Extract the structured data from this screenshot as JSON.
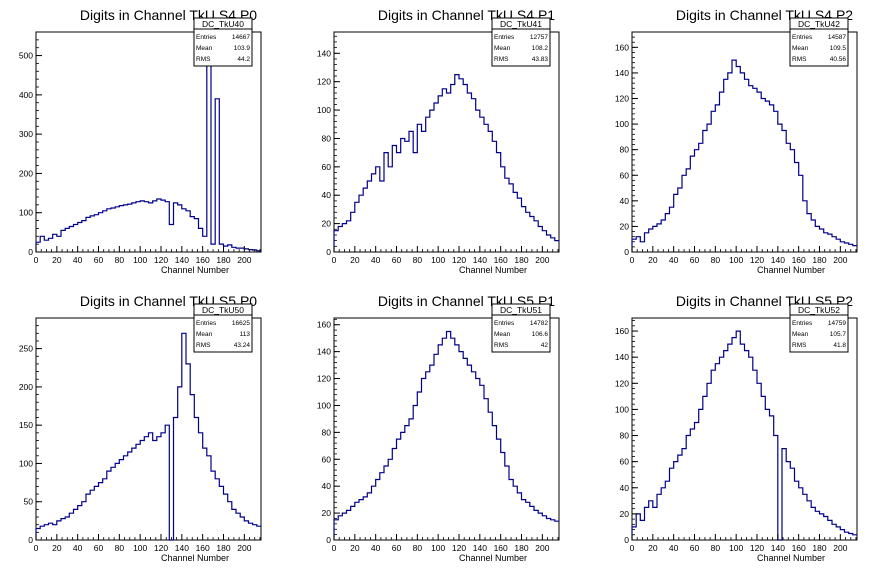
{
  "chart_data": [
    {
      "type": "histogram",
      "title": "Digits in Channel TkU S4 P0",
      "xlabel": "Channel Number",
      "ylabel": "",
      "xlim": [
        0,
        216
      ],
      "ylim": [
        0,
        560
      ],
      "xticks": [
        0,
        20,
        40,
        60,
        80,
        100,
        120,
        140,
        160,
        180,
        200
      ],
      "yticks": [
        0,
        100,
        200,
        300,
        400,
        500
      ],
      "stats": {
        "name": "DC_TkU40",
        "entries_label": "Entries",
        "entries": "14667",
        "mean_label": "Mean",
        "mean": "103.9",
        "rms_label": "RMS",
        "rms": "44.2"
      },
      "x": [
        0,
        4,
        8,
        12,
        16,
        20,
        24,
        28,
        32,
        36,
        40,
        44,
        48,
        52,
        56,
        60,
        64,
        68,
        72,
        76,
        80,
        84,
        88,
        92,
        96,
        100,
        104,
        108,
        112,
        116,
        120,
        124,
        128,
        132,
        136,
        140,
        144,
        148,
        152,
        156,
        160,
        164,
        168,
        172,
        176,
        180,
        184,
        188,
        192,
        196,
        200,
        204,
        208,
        212
      ],
      "values": [
        25,
        40,
        30,
        35,
        45,
        40,
        55,
        60,
        65,
        70,
        75,
        80,
        88,
        92,
        95,
        100,
        105,
        110,
        112,
        115,
        118,
        120,
        122,
        125,
        128,
        130,
        128,
        125,
        130,
        135,
        132,
        128,
        70,
        125,
        120,
        110,
        105,
        90,
        85,
        60,
        40,
        530,
        20,
        390,
        20,
        15,
        18,
        12,
        10,
        10,
        8,
        6,
        5,
        3
      ]
    },
    {
      "type": "histogram",
      "title": "Digits in Channel TkU S4 P1",
      "xlabel": "Channel Number",
      "ylabel": "",
      "xlim": [
        0,
        216
      ],
      "ylim": [
        0,
        155
      ],
      "xticks": [
        0,
        20,
        40,
        60,
        80,
        100,
        120,
        140,
        160,
        180,
        200
      ],
      "yticks": [
        0,
        20,
        40,
        60,
        80,
        100,
        120,
        140
      ],
      "stats": {
        "name": "DC_TkU41",
        "entries_label": "Entries",
        "entries": "12757",
        "mean_label": "Mean",
        "mean": "108.2",
        "rms_label": "RMS",
        "rms": "43.83"
      },
      "x": [
        0,
        4,
        8,
        12,
        16,
        20,
        24,
        28,
        32,
        36,
        40,
        44,
        48,
        52,
        56,
        60,
        64,
        68,
        72,
        76,
        80,
        84,
        88,
        92,
        96,
        100,
        104,
        108,
        112,
        116,
        120,
        124,
        128,
        132,
        136,
        140,
        144,
        148,
        152,
        156,
        160,
        164,
        168,
        172,
        176,
        180,
        184,
        188,
        192,
        196,
        200,
        204,
        208,
        212
      ],
      "values": [
        15,
        18,
        20,
        22,
        28,
        35,
        40,
        45,
        50,
        55,
        60,
        50,
        70,
        60,
        75,
        70,
        80,
        78,
        85,
        70,
        90,
        85,
        95,
        100,
        105,
        110,
        115,
        112,
        118,
        125,
        122,
        118,
        112,
        108,
        100,
        95,
        90,
        85,
        78,
        70,
        60,
        52,
        48,
        42,
        38,
        32,
        28,
        25,
        22,
        18,
        15,
        12,
        10,
        8
      ]
    },
    {
      "type": "histogram",
      "title": "Digits in Channel TkU S4 P2",
      "xlabel": "Channel Number",
      "ylabel": "",
      "xlim": [
        0,
        216
      ],
      "ylim": [
        0,
        172
      ],
      "xticks": [
        0,
        20,
        40,
        60,
        80,
        100,
        120,
        140,
        160,
        180,
        200
      ],
      "yticks": [
        0,
        20,
        40,
        60,
        80,
        100,
        120,
        140,
        160
      ],
      "stats": {
        "name": "DC_TkU42",
        "entries_label": "Entries",
        "entries": "14587",
        "mean_label": "Mean",
        "mean": "109.5",
        "rms_label": "RMS",
        "rms": "40.56"
      },
      "x": [
        0,
        4,
        8,
        12,
        16,
        20,
        24,
        28,
        32,
        36,
        40,
        44,
        48,
        52,
        56,
        60,
        64,
        68,
        72,
        76,
        80,
        84,
        88,
        92,
        96,
        100,
        104,
        108,
        112,
        116,
        120,
        124,
        128,
        132,
        136,
        140,
        144,
        148,
        152,
        156,
        160,
        164,
        168,
        172,
        176,
        180,
        184,
        188,
        192,
        196,
        200,
        204,
        208,
        212
      ],
      "values": [
        10,
        12,
        8,
        15,
        18,
        20,
        22,
        25,
        30,
        35,
        45,
        50,
        60,
        65,
        75,
        80,
        85,
        95,
        100,
        110,
        115,
        125,
        135,
        140,
        150,
        145,
        140,
        135,
        130,
        128,
        125,
        120,
        118,
        115,
        110,
        100,
        95,
        85,
        80,
        70,
        60,
        40,
        30,
        25,
        20,
        18,
        15,
        14,
        12,
        10,
        8,
        7,
        6,
        5
      ]
    },
    {
      "type": "histogram",
      "title": "Digits in Channel TkU S5 P0",
      "xlabel": "Channel Number",
      "ylabel": "",
      "xlim": [
        0,
        216
      ],
      "ylim": [
        0,
        290
      ],
      "xticks": [
        0,
        20,
        40,
        60,
        80,
        100,
        120,
        140,
        160,
        180,
        200
      ],
      "yticks": [
        0,
        50,
        100,
        150,
        200,
        250
      ],
      "stats": {
        "name": "DC_TkU50",
        "entries_label": "Entries",
        "entries": "16625",
        "mean_label": "Mean",
        "mean": "113",
        "rms_label": "RMS",
        "rms": "43.24"
      },
      "x": [
        0,
        4,
        8,
        12,
        16,
        20,
        24,
        28,
        32,
        36,
        40,
        44,
        48,
        52,
        56,
        60,
        64,
        68,
        72,
        76,
        80,
        84,
        88,
        92,
        96,
        100,
        104,
        108,
        112,
        116,
        120,
        124,
        128,
        132,
        136,
        140,
        144,
        148,
        152,
        156,
        160,
        164,
        168,
        172,
        176,
        180,
        184,
        188,
        192,
        196,
        200,
        204,
        208,
        212
      ],
      "values": [
        15,
        18,
        20,
        22,
        20,
        25,
        28,
        30,
        35,
        40,
        45,
        50,
        60,
        65,
        70,
        75,
        80,
        90,
        95,
        100,
        105,
        110,
        115,
        120,
        125,
        130,
        135,
        140,
        130,
        135,
        140,
        150,
        0,
        160,
        200,
        270,
        230,
        190,
        160,
        140,
        120,
        110,
        90,
        80,
        70,
        60,
        50,
        40,
        35,
        30,
        25,
        22,
        20,
        18
      ]
    },
    {
      "type": "histogram",
      "title": "Digits in Channel TkU S5 P1",
      "xlabel": "Channel Number",
      "ylabel": "",
      "xlim": [
        0,
        216
      ],
      "ylim": [
        0,
        165
      ],
      "xticks": [
        0,
        20,
        40,
        60,
        80,
        100,
        120,
        140,
        160,
        180,
        200
      ],
      "yticks": [
        0,
        20,
        40,
        60,
        80,
        100,
        120,
        140,
        160
      ],
      "stats": {
        "name": "DC_TkU51",
        "entries_label": "Entries",
        "entries": "14782",
        "mean_label": "Mean",
        "mean": "106.6",
        "rms_label": "RMS",
        "rms": "42"
      },
      "x": [
        0,
        4,
        8,
        12,
        16,
        20,
        24,
        28,
        32,
        36,
        40,
        44,
        48,
        52,
        56,
        60,
        64,
        68,
        72,
        76,
        80,
        84,
        88,
        92,
        96,
        100,
        104,
        108,
        112,
        116,
        120,
        124,
        128,
        132,
        136,
        140,
        144,
        148,
        152,
        156,
        160,
        164,
        168,
        172,
        176,
        180,
        184,
        188,
        192,
        196,
        200,
        204,
        208,
        212
      ],
      "values": [
        15,
        18,
        20,
        22,
        25,
        28,
        30,
        32,
        35,
        40,
        45,
        50,
        55,
        60,
        68,
        75,
        80,
        85,
        90,
        100,
        110,
        120,
        125,
        130,
        138,
        145,
        150,
        155,
        150,
        145,
        140,
        135,
        130,
        125,
        120,
        115,
        105,
        95,
        85,
        75,
        65,
        55,
        45,
        40,
        35,
        30,
        28,
        25,
        22,
        20,
        18,
        16,
        15,
        14
      ]
    },
    {
      "type": "histogram",
      "title": "Digits in Channel TkU S5 P2",
      "xlabel": "Channel Number",
      "ylabel": "",
      "xlim": [
        0,
        216
      ],
      "ylim": [
        0,
        170
      ],
      "xticks": [
        0,
        20,
        40,
        60,
        80,
        100,
        120,
        140,
        160,
        180,
        200
      ],
      "yticks": [
        0,
        20,
        40,
        60,
        80,
        100,
        120,
        140,
        160
      ],
      "stats": {
        "name": "DC_TkU52",
        "entries_label": "Entries",
        "entries": "14759",
        "mean_label": "Mean",
        "mean": "105.7",
        "rms_label": "RMS",
        "rms": "41.8"
      },
      "x": [
        0,
        4,
        8,
        12,
        16,
        20,
        24,
        28,
        32,
        36,
        40,
        44,
        48,
        52,
        56,
        60,
        64,
        68,
        72,
        76,
        80,
        84,
        88,
        92,
        96,
        100,
        104,
        108,
        112,
        116,
        120,
        124,
        128,
        132,
        136,
        140,
        144,
        148,
        152,
        156,
        160,
        164,
        168,
        172,
        176,
        180,
        184,
        188,
        192,
        196,
        200,
        204,
        208,
        212
      ],
      "values": [
        10,
        20,
        15,
        25,
        30,
        25,
        35,
        40,
        45,
        55,
        60,
        65,
        70,
        80,
        85,
        90,
        100,
        110,
        120,
        130,
        135,
        140,
        145,
        150,
        155,
        160,
        150,
        145,
        140,
        130,
        120,
        110,
        100,
        95,
        80,
        0,
        70,
        60,
        55,
        45,
        40,
        35,
        30,
        25,
        22,
        20,
        18,
        15,
        12,
        10,
        8,
        6,
        5,
        4
      ]
    }
  ],
  "colors": {
    "line": "#00008b",
    "frame": "#000000",
    "background": "#ffffff"
  }
}
